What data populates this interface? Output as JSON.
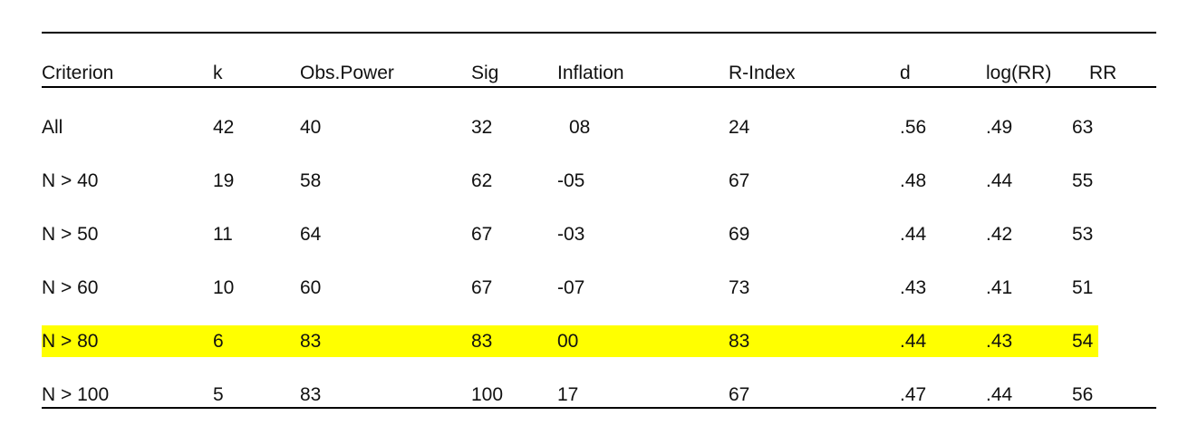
{
  "table": {
    "header": [
      "Criterion",
      "k",
      "Obs.Power",
      "Sig",
      "Inflation",
      "R-Index",
      "d",
      "log(RR)",
      "RR"
    ],
    "rows": [
      [
        "All",
        "42",
        "40",
        "32",
        "08",
        "24",
        ".56",
        ".49",
        "63"
      ],
      [
        "N > 40",
        "19",
        "58",
        "62",
        "-05",
        "67",
        ".48",
        ".44",
        "55"
      ],
      [
        "N > 50",
        "11",
        "64",
        "67",
        "-03",
        "69",
        ".44",
        ".42",
        "53"
      ],
      [
        "N > 60",
        "10",
        "60",
        "67",
        "-07",
        "73",
        ".43",
        ".41",
        "51"
      ],
      [
        "N > 80",
        "6",
        "83",
        "83",
        "00",
        "83",
        ".44",
        ".43",
        "54"
      ],
      [
        "N > 100",
        "5",
        "83",
        "100",
        "17",
        "67",
        ".47",
        ".44",
        "56"
      ]
    ],
    "highlight_row": 4,
    "highlight_color": "#ffff00"
  }
}
